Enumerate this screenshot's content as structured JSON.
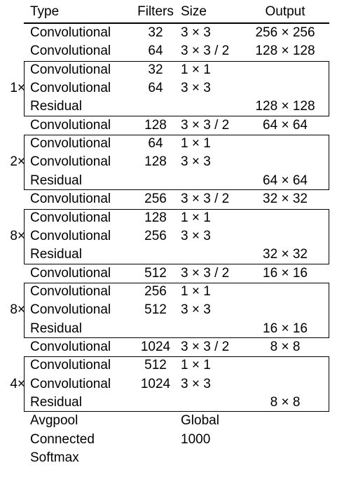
{
  "header": {
    "type": "Type",
    "filters": "Filters",
    "size": "Size",
    "output": "Output"
  },
  "rows": [
    {
      "type": "Convolutional",
      "filters": "32",
      "size": "3 × 3",
      "output": "256 × 256"
    },
    {
      "type": "Convolutional",
      "filters": "64",
      "size": "3 × 3 / 2",
      "output": "128 × 128"
    },
    {
      "type": "Convolutional",
      "filters": "32",
      "size": "1 × 1",
      "output": "",
      "block": 0
    },
    {
      "type": "Convolutional",
      "filters": "64",
      "size": "3 × 3",
      "output": "",
      "block": 0
    },
    {
      "type": "Residual",
      "filters": "",
      "size": "",
      "output": "128 × 128",
      "block": 0
    },
    {
      "type": "Convolutional",
      "filters": "128",
      "size": "3 × 3 / 2",
      "output": "64 × 64"
    },
    {
      "type": "Convolutional",
      "filters": "64",
      "size": "1 × 1",
      "output": "",
      "block": 1
    },
    {
      "type": "Convolutional",
      "filters": "128",
      "size": "3 × 3",
      "output": "",
      "block": 1
    },
    {
      "type": "Residual",
      "filters": "",
      "size": "",
      "output": "64 × 64",
      "block": 1
    },
    {
      "type": "Convolutional",
      "filters": "256",
      "size": "3 × 3 / 2",
      "output": "32 × 32"
    },
    {
      "type": "Convolutional",
      "filters": "128",
      "size": "1 × 1",
      "output": "",
      "block": 2
    },
    {
      "type": "Convolutional",
      "filters": "256",
      "size": "3 × 3",
      "output": "",
      "block": 2
    },
    {
      "type": "Residual",
      "filters": "",
      "size": "",
      "output": "32 × 32",
      "block": 2
    },
    {
      "type": "Convolutional",
      "filters": "512",
      "size": "3 × 3 / 2",
      "output": "16 × 16"
    },
    {
      "type": "Convolutional",
      "filters": "256",
      "size": "1 × 1",
      "output": "",
      "block": 3
    },
    {
      "type": "Convolutional",
      "filters": "512",
      "size": "3 × 3",
      "output": "",
      "block": 3
    },
    {
      "type": "Residual",
      "filters": "",
      "size": "",
      "output": "16 × 16",
      "block": 3
    },
    {
      "type": "Convolutional",
      "filters": "1024",
      "size": "3 × 3 / 2",
      "output": "8 × 8"
    },
    {
      "type": "Convolutional",
      "filters": "512",
      "size": "1 × 1",
      "output": "",
      "block": 4
    },
    {
      "type": "Convolutional",
      "filters": "1024",
      "size": "3 × 3",
      "output": "",
      "block": 4
    },
    {
      "type": "Residual",
      "filters": "",
      "size": "",
      "output": "8 × 8",
      "block": 4
    },
    {
      "type": "Avgpool",
      "filters": "",
      "size": "Global",
      "output": ""
    },
    {
      "type": "Connected",
      "filters": "",
      "size": "1000",
      "output": ""
    },
    {
      "type": "Softmax",
      "filters": "",
      "size": "",
      "output": ""
    }
  ],
  "blocks": [
    {
      "multiplier": "1×"
    },
    {
      "multiplier": "2×"
    },
    {
      "multiplier": "8×"
    },
    {
      "multiplier": "8×"
    },
    {
      "multiplier": "4×"
    }
  ]
}
